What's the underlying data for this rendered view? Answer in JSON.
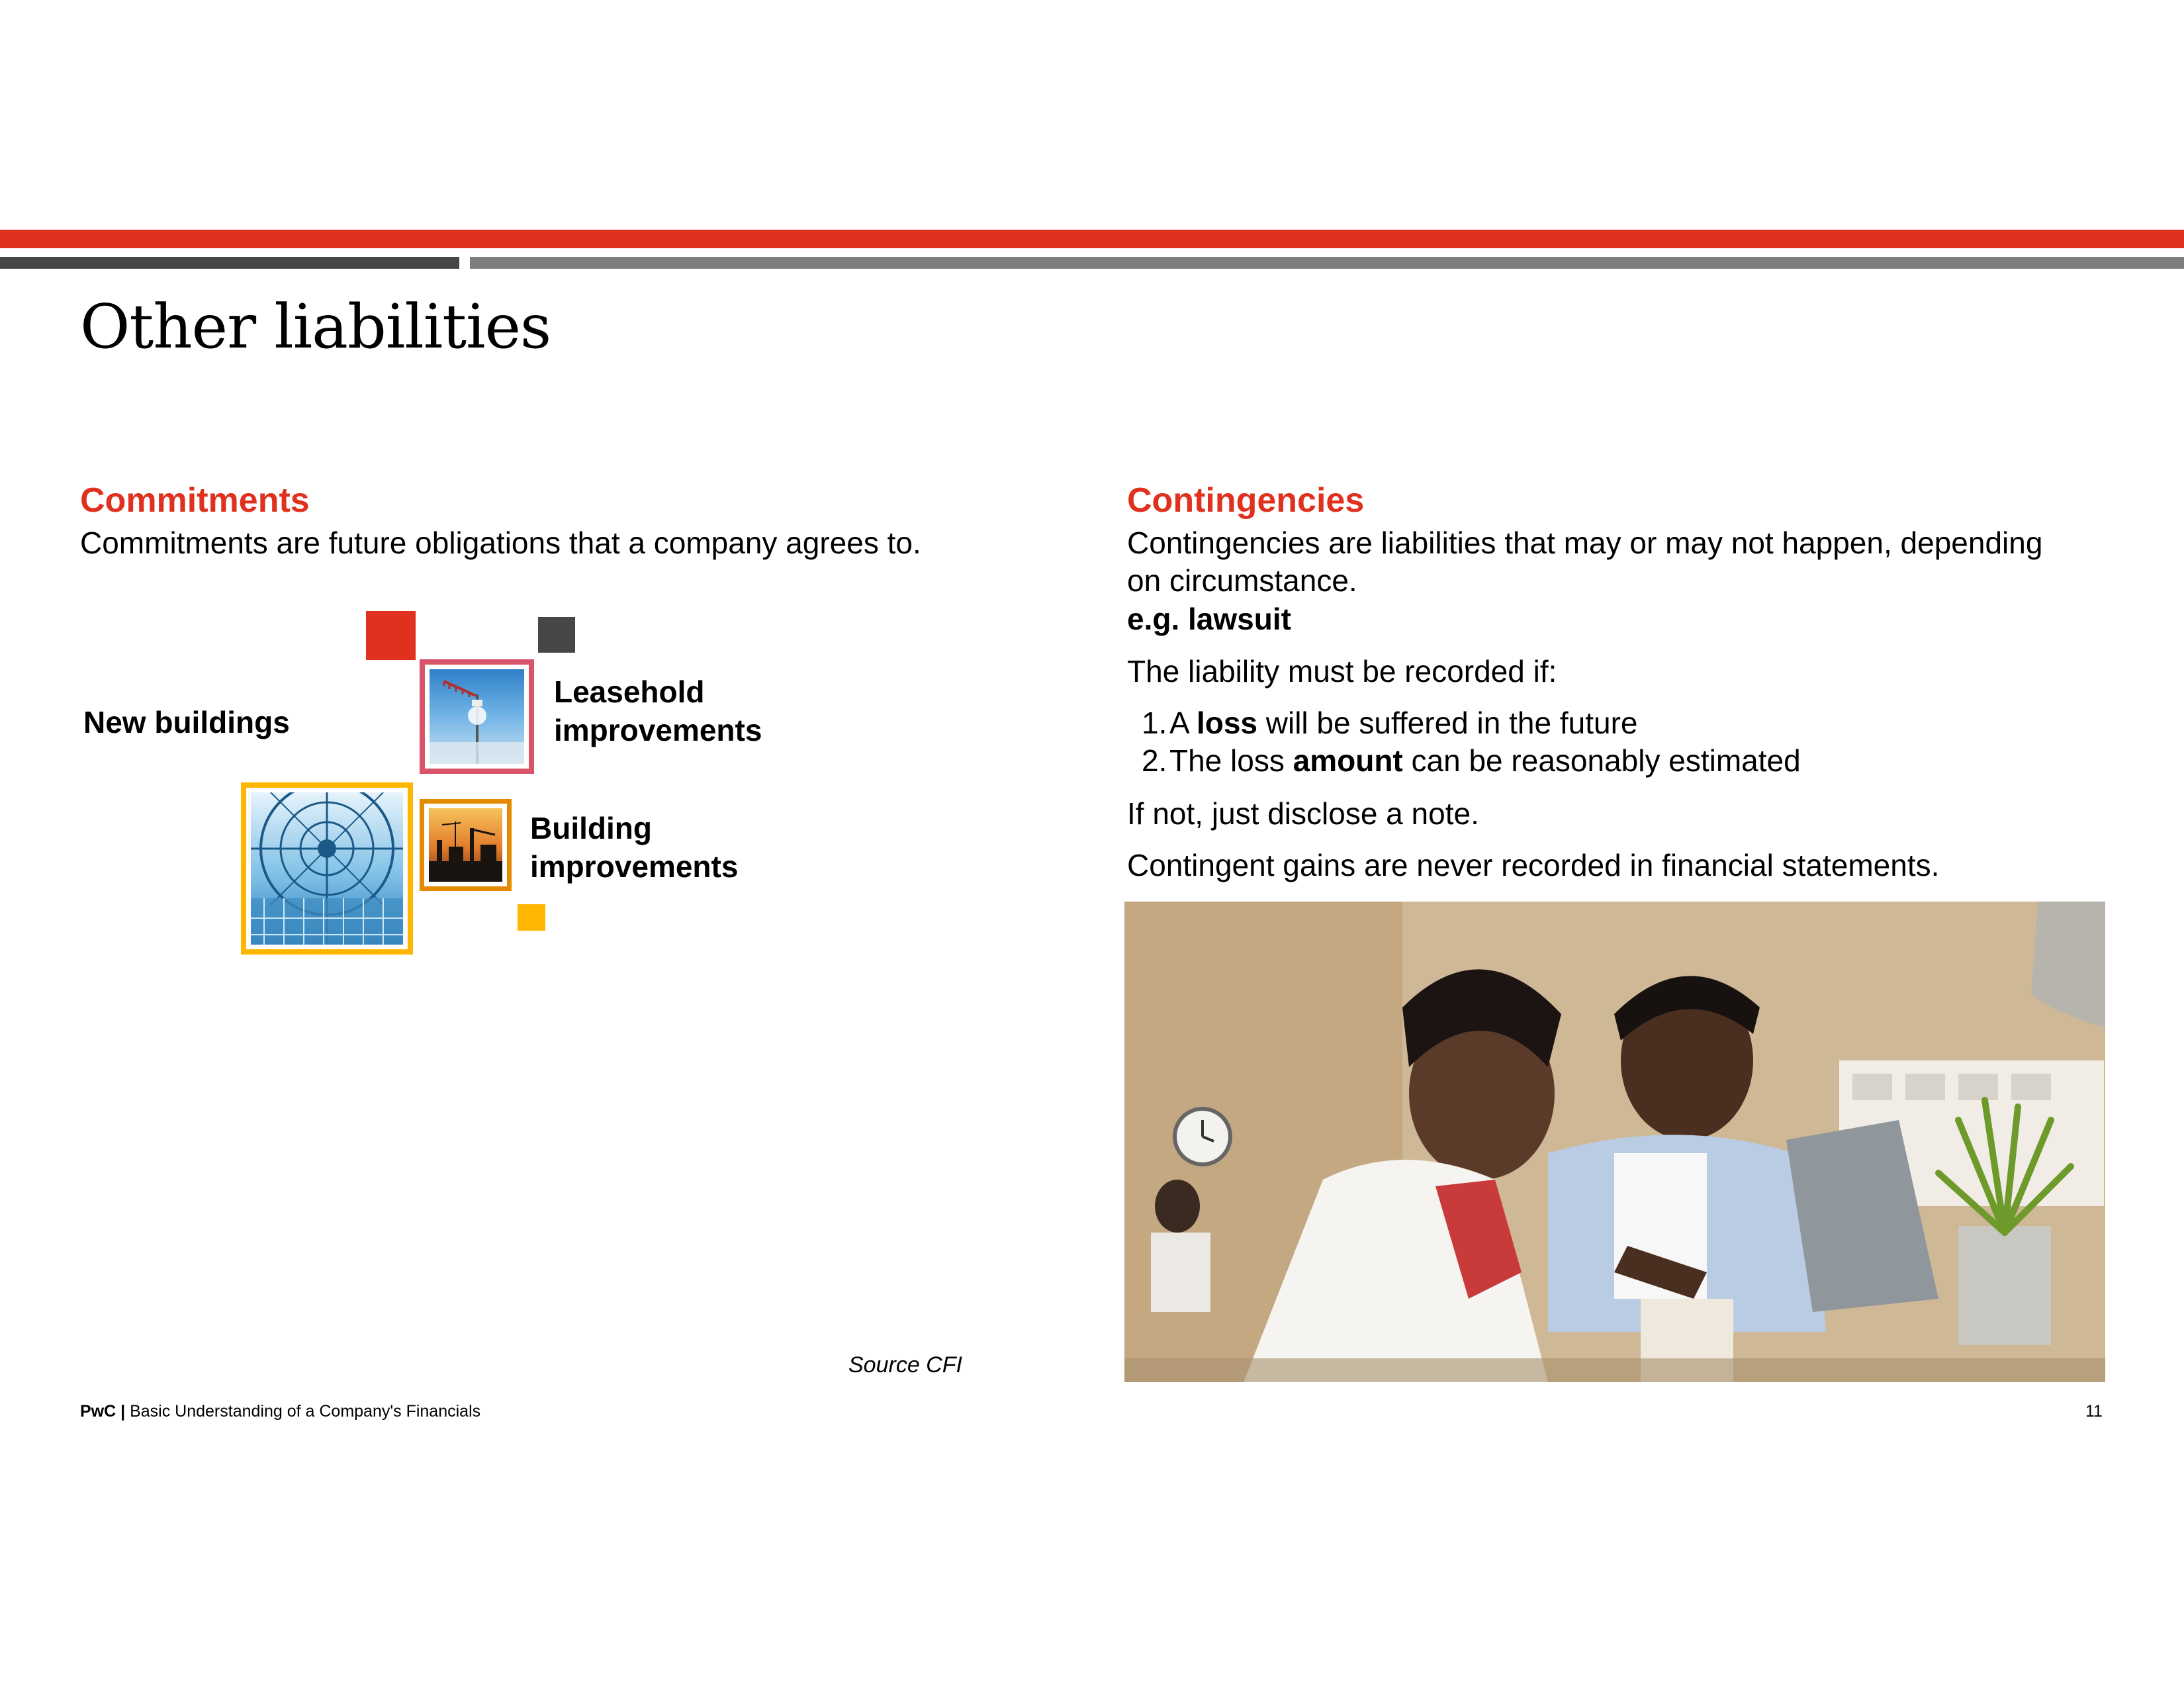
{
  "slide": {
    "title": "Other liabilities",
    "page_number": "11",
    "source": "Source CFI"
  },
  "footer": {
    "brand": "PwC |",
    "text": "Basic Understanding of a Company's Financials"
  },
  "commitments": {
    "heading": "Commitments",
    "description": "Commitments are future obligations that a company agrees to.",
    "items": {
      "new_buildings": "New buildings",
      "leasehold_line1": "Leasehold",
      "leasehold_line2": "improvements",
      "building_line1": "Building",
      "building_line2": "improvements"
    }
  },
  "contingencies": {
    "heading": "Contingencies",
    "description_line1": "Contingencies are liabilities that may or may not happen, depending",
    "description_line2": "on circumstance.",
    "example": "e.g. lawsuit",
    "condition_intro": "The liability must be recorded if:",
    "conditions": [
      {
        "num": "1.",
        "pre": "A ",
        "bold": "loss",
        "post": " will be suffered in the future"
      },
      {
        "num": "2.",
        "pre": "The loss ",
        "bold": "amount",
        "post": " can be reasonably estimated"
      }
    ],
    "otherwise": "If not, just disclose a note.",
    "gains_note": "Contingent gains are never recorded in financial statements."
  },
  "colors": {
    "accent_red": "#e0301e",
    "pink_frame": "#d9536a",
    "orange_frame": "#e48a00",
    "yellow": "#ffb600",
    "dark_grey": "#464646"
  }
}
